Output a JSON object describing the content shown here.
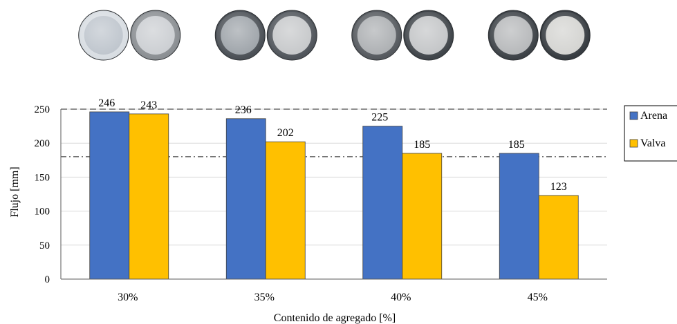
{
  "chart_data": {
    "type": "bar",
    "categories": [
      "30%",
      "35%",
      "40%",
      "45%"
    ],
    "series": [
      {
        "name": "Arena",
        "values": [
          246,
          236,
          225,
          185
        ],
        "color": "#4472C4"
      },
      {
        "name": "Valva",
        "values": [
          243,
          202,
          185,
          123
        ],
        "color": "#FFC000"
      }
    ],
    "xlabel": "Contenido de agregado [%]",
    "ylabel": "Flujo [mm]",
    "ylim": [
      0,
      250
    ],
    "yticks": [
      0,
      50,
      100,
      150,
      200,
      250
    ],
    "grid": true,
    "legend_position": "right",
    "reference_lines": [
      {
        "value": 250,
        "style": "dashed"
      },
      {
        "value": 180,
        "style": "dash-dot"
      }
    ]
  },
  "photos": {
    "description_icon": "specimen-photo-icon",
    "pairs": [
      {
        "category": "30%",
        "left": {
          "rim": "#d8dde2",
          "center": "#bcc3cb"
        },
        "right": {
          "rim": "#8a8e92",
          "center": "#c9ccd0"
        }
      },
      {
        "category": "35%",
        "left": {
          "rim": "#4a4f55",
          "center": "#9aa0a6"
        },
        "right": {
          "rim": "#4f545a",
          "center": "#c4c6c8"
        }
      },
      {
        "category": "40%",
        "left": {
          "rim": "#55595e",
          "center": "#a9acaf"
        },
        "right": {
          "rim": "#3f4449",
          "center": "#c1c3c5"
        }
      },
      {
        "category": "45%",
        "left": {
          "rim": "#3c4146",
          "center": "#b3b5b7"
        },
        "right": {
          "rim": "#363b40",
          "center": "#d2d2cf"
        }
      }
    ]
  }
}
